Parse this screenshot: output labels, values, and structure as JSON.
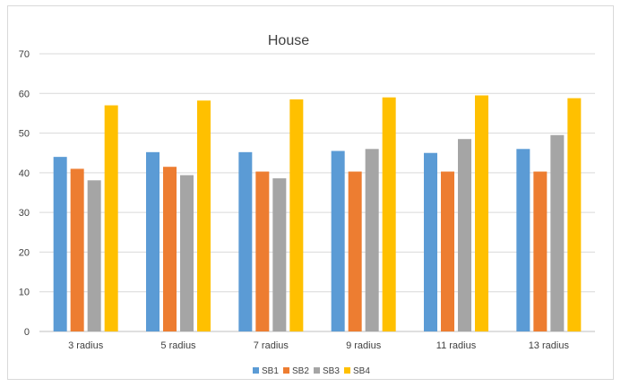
{
  "chart_data": {
    "type": "bar",
    "title": "House",
    "xlabel": "",
    "ylabel": "",
    "categories": [
      "3 radius",
      "5 radius",
      "7 radius",
      "9 radius",
      "11 radius",
      "13 radius"
    ],
    "series": [
      {
        "name": "SB1",
        "color": "#5b9bd5",
        "values": [
          44.0,
          45.2,
          45.2,
          45.5,
          45.0,
          46.0
        ]
      },
      {
        "name": "SB2",
        "color": "#ed7d31",
        "values": [
          41.0,
          41.5,
          40.3,
          40.3,
          40.3,
          40.3
        ]
      },
      {
        "name": "SB3",
        "color": "#a5a5a5",
        "values": [
          38.1,
          39.4,
          38.6,
          46.0,
          48.5,
          49.5
        ]
      },
      {
        "name": "SB4",
        "color": "#ffc000",
        "values": [
          57.0,
          58.2,
          58.5,
          59.0,
          59.5,
          58.8
        ]
      }
    ],
    "ylim": [
      0,
      70
    ],
    "yticks": [
      "0",
      "10",
      "20",
      "30",
      "40",
      "50",
      "60",
      "70"
    ],
    "grid": true,
    "legend_position": "bottom"
  }
}
